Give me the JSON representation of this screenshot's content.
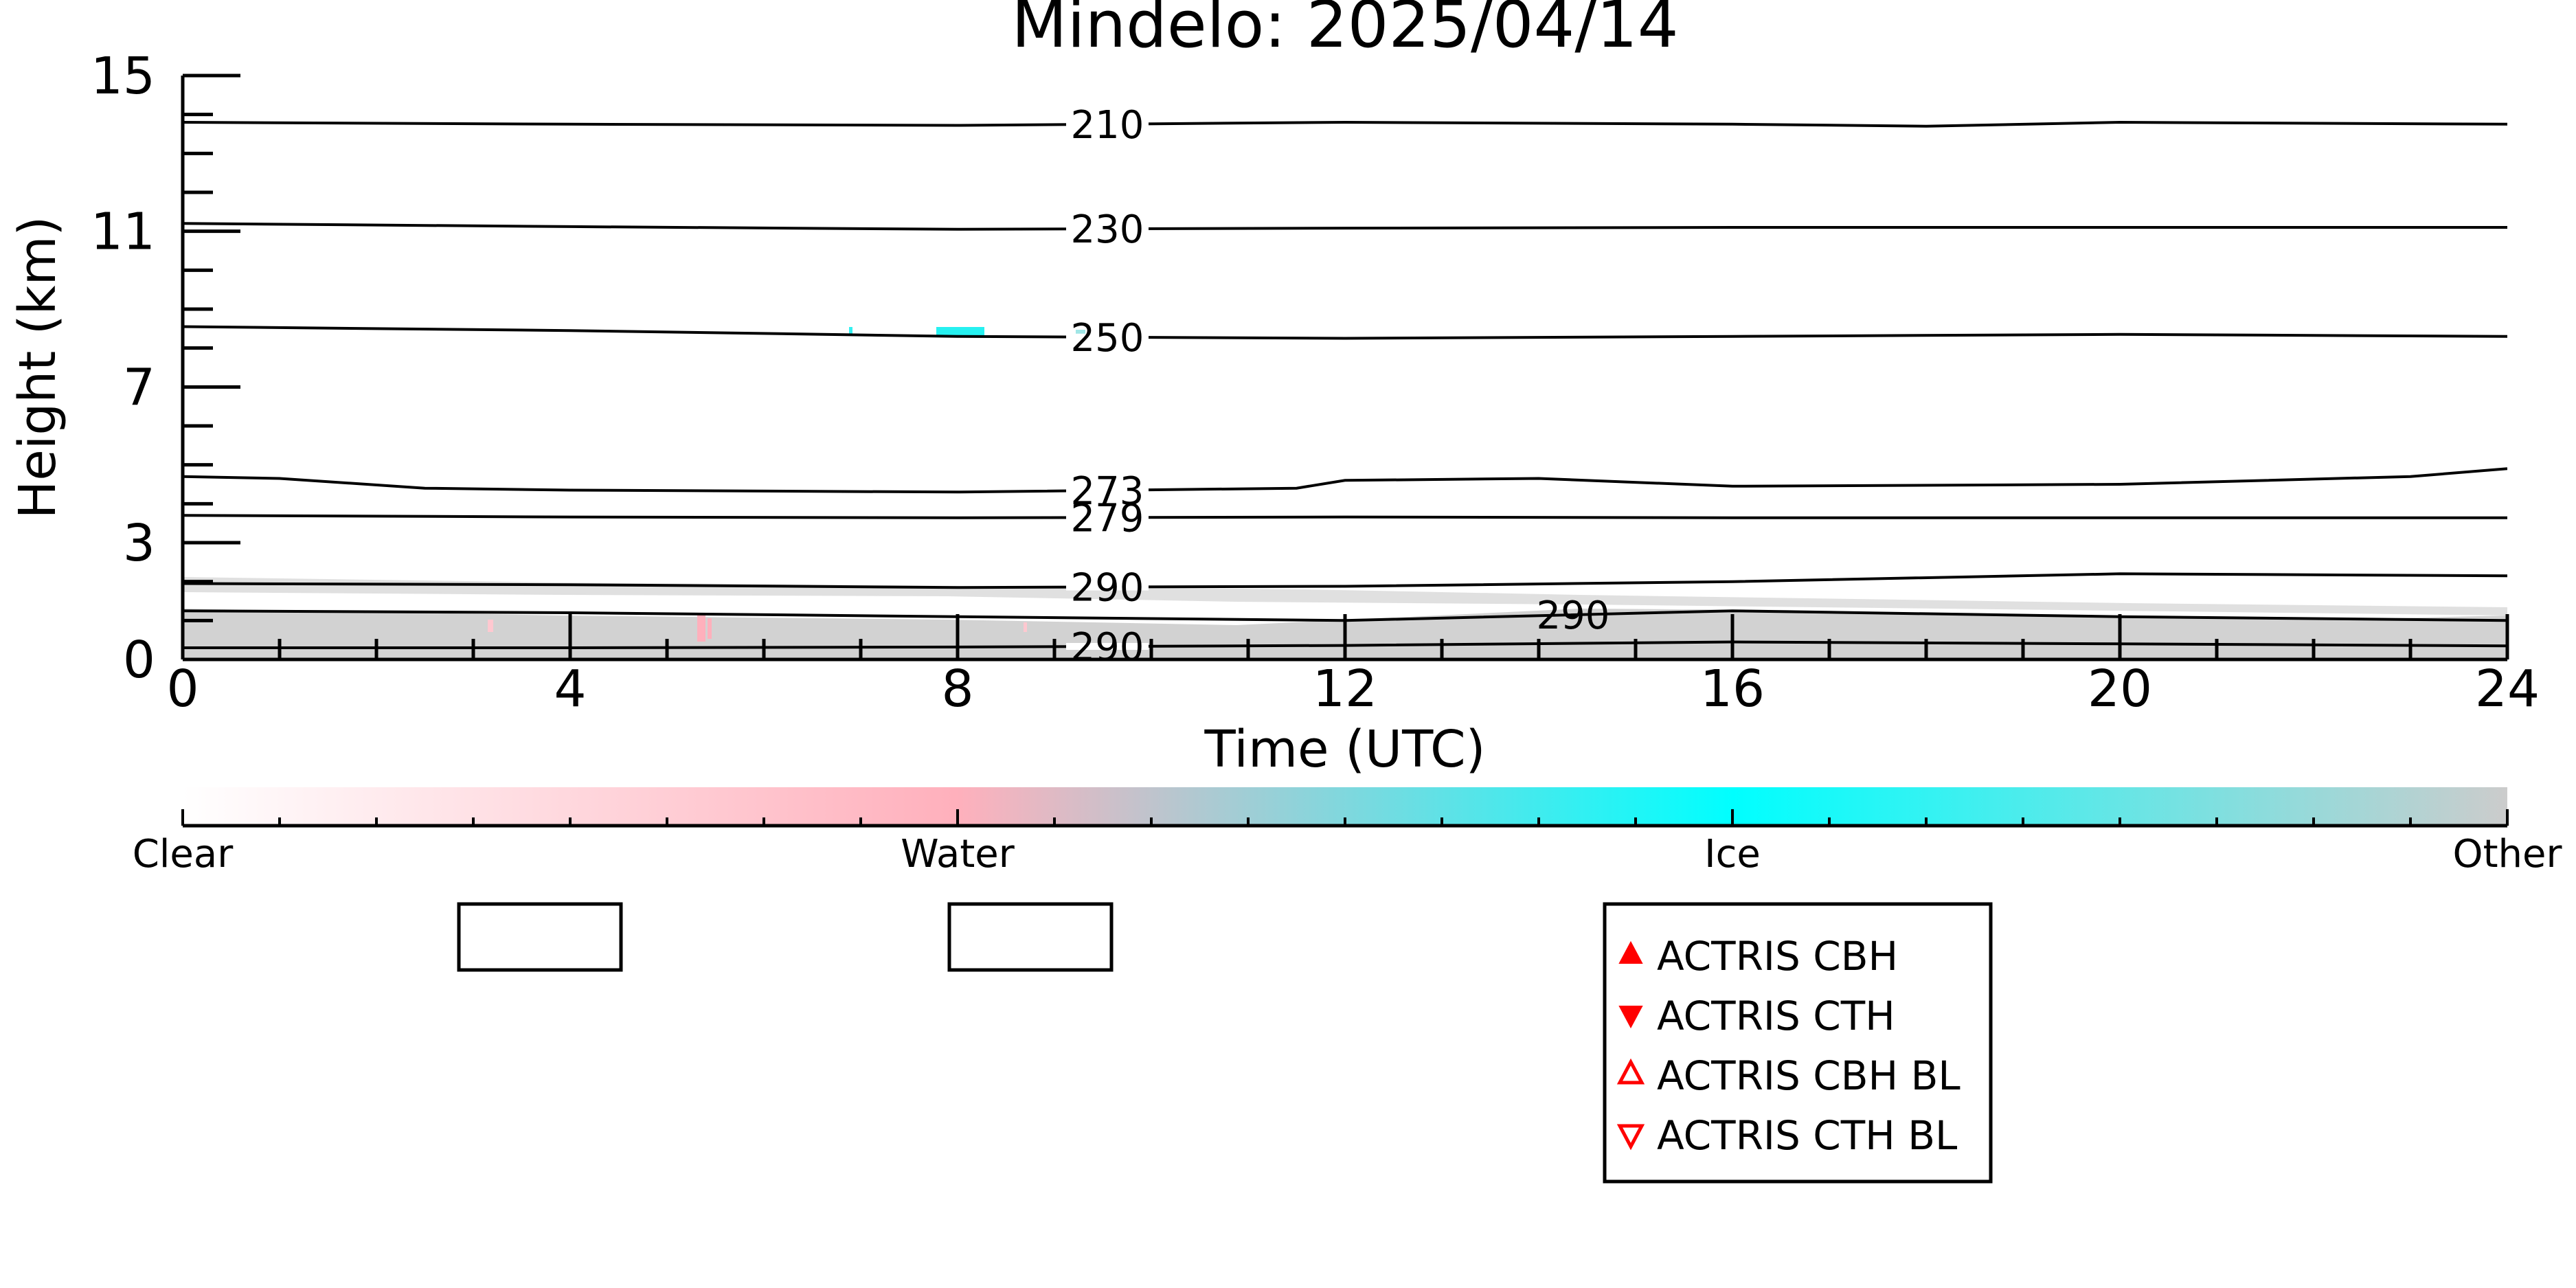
{
  "chart_data": {
    "type": "heatmap",
    "title": "Mindelo: 2025/04/14",
    "xlabel": "Time (UTC)",
    "ylabel": "Height (km)",
    "xlim": [
      0,
      24
    ],
    "ylim": [
      0,
      15
    ],
    "x_ticks": [
      "0",
      "4",
      "8",
      "12",
      "16",
      "20",
      "24"
    ],
    "y_ticks": [
      "0",
      "3",
      "7",
      "11",
      "15"
    ],
    "grid": false,
    "contours": [
      {
        "label": "210",
        "points": [
          [
            0,
            13.8
          ],
          [
            4,
            13.75
          ],
          [
            8,
            13.72
          ],
          [
            12,
            13.8
          ],
          [
            16,
            13.75
          ],
          [
            18,
            13.7
          ],
          [
            20,
            13.8
          ],
          [
            24,
            13.75
          ]
        ]
      },
      {
        "label": "230",
        "points": [
          [
            0,
            11.2
          ],
          [
            4,
            11.12
          ],
          [
            8,
            11.05
          ],
          [
            12,
            11.08
          ],
          [
            16,
            11.1
          ],
          [
            20,
            11.1
          ],
          [
            24,
            11.1
          ]
        ]
      },
      {
        "label": "250",
        "points": [
          [
            0,
            8.55
          ],
          [
            4,
            8.45
          ],
          [
            8,
            8.3
          ],
          [
            12,
            8.25
          ],
          [
            16,
            8.3
          ],
          [
            20,
            8.35
          ],
          [
            24,
            8.3
          ]
        ]
      },
      {
        "label": "273",
        "points": [
          [
            0,
            4.7
          ],
          [
            1,
            4.65
          ],
          [
            2.5,
            4.4
          ],
          [
            4,
            4.35
          ],
          [
            8,
            4.3
          ],
          [
            11.5,
            4.4
          ],
          [
            12,
            4.6
          ],
          [
            14,
            4.65
          ],
          [
            16,
            4.45
          ],
          [
            20,
            4.5
          ],
          [
            23,
            4.7
          ],
          [
            24,
            4.9
          ]
        ]
      },
      {
        "label": "279",
        "points": [
          [
            0,
            3.7
          ],
          [
            4,
            3.66
          ],
          [
            8,
            3.64
          ],
          [
            12,
            3.66
          ],
          [
            16,
            3.64
          ],
          [
            20,
            3.64
          ],
          [
            24,
            3.64
          ]
        ]
      },
      {
        "label": "290",
        "points": [
          [
            0,
            1.95
          ],
          [
            4,
            1.92
          ],
          [
            8,
            1.85
          ],
          [
            12,
            1.88
          ],
          [
            16,
            2.0
          ],
          [
            20,
            2.2
          ],
          [
            24,
            2.15
          ]
        ]
      },
      {
        "label": "290",
        "points": [
          [
            0,
            1.25
          ],
          [
            4,
            1.2
          ],
          [
            8,
            1.1
          ],
          [
            12,
            1.0
          ],
          [
            16,
            1.25
          ],
          [
            20,
            1.1
          ],
          [
            24,
            1.0
          ]
        ]
      },
      {
        "label": "290",
        "points": [
          [
            0,
            0.3
          ],
          [
            4,
            0.3
          ],
          [
            8,
            0.32
          ],
          [
            12,
            0.36
          ],
          [
            16,
            0.45
          ],
          [
            20,
            0.4
          ],
          [
            24,
            0.35
          ]
        ]
      }
    ],
    "colorbar": {
      "categories": [
        "Clear",
        "Water",
        "Ice",
        "Other"
      ],
      "colors": [
        "#ffffff",
        "#ffb0bc",
        "#00ffff",
        "#cccccc"
      ]
    },
    "legend": {
      "placement": "bottom",
      "entries": [
        {
          "label": "ACTRIS CBH",
          "marker": "triangle-up-filled",
          "color": "#ff0000"
        },
        {
          "label": "ACTRIS CTH",
          "marker": "triangle-down-filled",
          "color": "#ff0000"
        },
        {
          "label": "ACTRIS CBH BL",
          "marker": "triangle-up-open",
          "color": "#ff0000"
        },
        {
          "label": "ACTRIS CTH BL",
          "marker": "triangle-down-open",
          "color": "#ff0000"
        }
      ],
      "empty_boxes": 2
    }
  }
}
